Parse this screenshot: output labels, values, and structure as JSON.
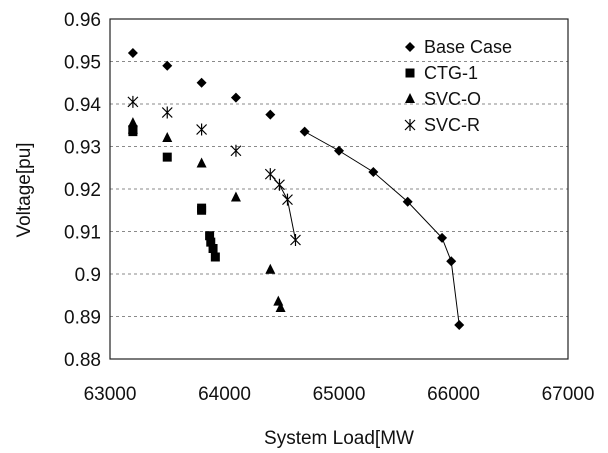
{
  "chart_data": {
    "type": "scatter",
    "title": "",
    "xlabel": "System Load[MW",
    "ylabel": "Voltage[pu]",
    "xlim": [
      63000,
      67000
    ],
    "ylim": [
      0.88,
      0.96
    ],
    "x_ticks": [
      "63000",
      "64000",
      "65000",
      "66000",
      "67000"
    ],
    "y_ticks": [
      "0.88",
      "0.89",
      "0.9",
      "0.91",
      "0.92",
      "0.93",
      "0.94",
      "0.95",
      "0.96"
    ],
    "x_tick_values": [
      63000,
      64000,
      65000,
      66000,
      67000
    ],
    "y_tick_values": [
      0.88,
      0.89,
      0.9,
      0.91,
      0.92,
      0.93,
      0.94,
      0.95,
      0.96
    ],
    "grid": "horizontal dashed",
    "legend": "top-right",
    "series": [
      {
        "name": "Base Case",
        "marker": "diamond",
        "color": "#000000",
        "x": [
          63200,
          63500,
          63800,
          64100,
          64400,
          64700,
          65000,
          65300,
          65600,
          65900,
          65980,
          66050
        ],
        "y": [
          0.952,
          0.949,
          0.945,
          0.9415,
          0.9375,
          0.9335,
          0.929,
          0.924,
          0.917,
          0.9085,
          0.903,
          0.888
        ],
        "connect_from_index": 5
      },
      {
        "name": "CTG-1",
        "marker": "square",
        "color": "#000000",
        "x": [
          63200,
          63200,
          63500,
          63800,
          63800,
          63870,
          63880,
          63900,
          63920
        ],
        "y": [
          0.934,
          0.9335,
          0.9275,
          0.9155,
          0.915,
          0.909,
          0.9075,
          0.906,
          0.904
        ],
        "connect_from_index": -1
      },
      {
        "name": "SVC-O",
        "marker": "triangle",
        "color": "#000000",
        "x": [
          63200,
          63200,
          63500,
          63800,
          64100,
          64400,
          64470,
          64490
        ],
        "y": [
          0.9355,
          0.934,
          0.932,
          0.926,
          0.918,
          0.901,
          0.8935,
          0.892
        ],
        "connect_from_index": -1
      },
      {
        "name": "SVC-R",
        "marker": "asterisk",
        "color": "#000000",
        "x": [
          63200,
          63500,
          63800,
          64100,
          64400,
          64480,
          64550,
          64620
        ],
        "y": [
          0.9405,
          0.938,
          0.934,
          0.929,
          0.9235,
          0.921,
          0.9175,
          0.908
        ],
        "connect_from_index": 4
      }
    ]
  }
}
